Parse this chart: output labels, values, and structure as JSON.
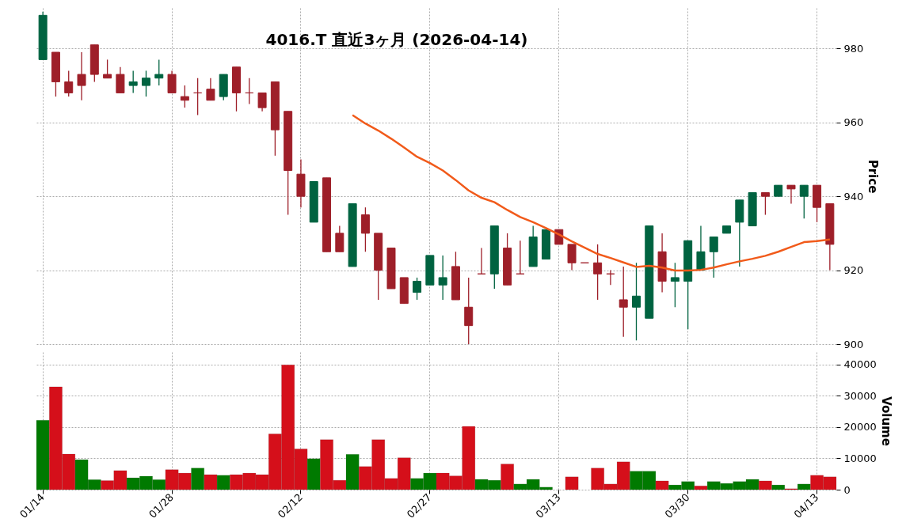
{
  "chart_data": [
    {
      "type": "candlestick",
      "title": "4016.T 直近3ヶ月 (2026-04-14)",
      "ylabel": "Price",
      "ohlc": [
        [
          977,
          990,
          977,
          989
        ],
        [
          979,
          979,
          967,
          971
        ],
        [
          971,
          974,
          967,
          968
        ],
        [
          973,
          979,
          966,
          970
        ],
        [
          981,
          981,
          971,
          973
        ],
        [
          973,
          977,
          972,
          972
        ],
        [
          973,
          975,
          968,
          968
        ],
        [
          970,
          974,
          968,
          971
        ],
        [
          970,
          974,
          967,
          972
        ],
        [
          972,
          977,
          970,
          973
        ],
        [
          973,
          974,
          968,
          968
        ],
        [
          967,
          970,
          964,
          966
        ],
        [
          968,
          972,
          962,
          968
        ],
        [
          969,
          972,
          966,
          966
        ],
        [
          967,
          973,
          966,
          973
        ],
        [
          975,
          975,
          963,
          968
        ],
        [
          968,
          972,
          965,
          968
        ],
        [
          968,
          968,
          963,
          964
        ],
        [
          971,
          971,
          951,
          958
        ],
        [
          963,
          963,
          935,
          947
        ],
        [
          946,
          950,
          937,
          940
        ],
        [
          933,
          944,
          933,
          944
        ],
        [
          945,
          945,
          925,
          925
        ],
        [
          930,
          932,
          925,
          925
        ],
        [
          921,
          938,
          921,
          938
        ],
        [
          935,
          937,
          925,
          930
        ],
        [
          930,
          930,
          912,
          920
        ],
        [
          926,
          926,
          915,
          915
        ],
        [
          918,
          918,
          911,
          911
        ],
        [
          914,
          918,
          912,
          917
        ],
        [
          916,
          924,
          916,
          924
        ],
        [
          916,
          924,
          912,
          918
        ],
        [
          921,
          925,
          912,
          912
        ],
        [
          910,
          918,
          900,
          905
        ],
        [
          919,
          926,
          919,
          919
        ],
        [
          919,
          932,
          915,
          932
        ],
        [
          926,
          930,
          916,
          916
        ],
        [
          919,
          928,
          919,
          919
        ],
        [
          921,
          932,
          921,
          929
        ],
        [
          923,
          931,
          923,
          931
        ],
        [
          931,
          931,
          927,
          927
        ],
        [
          927,
          927,
          920,
          922
        ],
        [
          922,
          922,
          922,
          922
        ],
        [
          922,
          927,
          912,
          919
        ],
        [
          919,
          920,
          916,
          919
        ],
        [
          912,
          921,
          902,
          910
        ],
        [
          910,
          922,
          901,
          913
        ],
        [
          907,
          932,
          907,
          932
        ],
        [
          925,
          930,
          914,
          917
        ],
        [
          917,
          922,
          910,
          918
        ],
        [
          917,
          928,
          904,
          928
        ],
        [
          920,
          932,
          920,
          925
        ],
        [
          925,
          929,
          918,
          929
        ],
        [
          930,
          932,
          930,
          932
        ],
        [
          933,
          939,
          921,
          939
        ],
        [
          932,
          941,
          932,
          941
        ],
        [
          941,
          941,
          935,
          940
        ],
        [
          940,
          943,
          940,
          943
        ],
        [
          943,
          943,
          938,
          942
        ],
        [
          940,
          943,
          934,
          943
        ],
        [
          943,
          943,
          933,
          937
        ],
        [
          938,
          938,
          920,
          927
        ]
      ],
      "colors": [
        "#006340",
        "#9e1f29",
        "#9e1f29",
        "#9e1f29",
        "#9e1f29",
        "#9e1f29",
        "#9e1f29",
        "#006340",
        "#006340",
        "#006340",
        "#9e1f29",
        "#9e1f29",
        "#9e1f29",
        "#9e1f29",
        "#006340",
        "#9e1f29",
        "#9e1f29",
        "#9e1f29",
        "#9e1f29",
        "#9e1f29",
        "#9e1f29",
        "#006340",
        "#9e1f29",
        "#9e1f29",
        "#006340",
        "#9e1f29",
        "#9e1f29",
        "#9e1f29",
        "#9e1f29",
        "#006340",
        "#006340",
        "#006340",
        "#9e1f29",
        "#9e1f29",
        "#9e1f29",
        "#006340",
        "#9e1f29",
        "#9e1f29",
        "#006340",
        "#006340",
        "#9e1f29",
        "#9e1f29",
        "#9e1f29",
        "#9e1f29",
        "#9e1f29",
        "#9e1f29",
        "#006340",
        "#006340",
        "#9e1f29",
        "#006340",
        "#006340",
        "#006340",
        "#006340",
        "#006340",
        "#006340",
        "#006340",
        "#9e1f29",
        "#006340",
        "#9e1f29",
        "#006340",
        "#9e1f29",
        "#9e1f29"
      ],
      "series": [
        {
          "type": "line",
          "color": "#f15a1a",
          "values": [
            null,
            null,
            null,
            null,
            null,
            null,
            null,
            null,
            null,
            null,
            null,
            null,
            null,
            null,
            null,
            null,
            null,
            null,
            null,
            null,
            null,
            null,
            null,
            null,
            962,
            959.7,
            957.8,
            955.6,
            953.2,
            950.7,
            949,
            947,
            944.4,
            941.6,
            939.6,
            938.4,
            936.3,
            934.4,
            933,
            931.4,
            929.7,
            927.8,
            926.1,
            924.4,
            923.3,
            922.1,
            920.9,
            921.2,
            920.7,
            919.9,
            919.9,
            920.1,
            920.7,
            921.6,
            922.4,
            923.1,
            923.9,
            925,
            926.3,
            927.6,
            927.9,
            928.3
          ]
        }
      ],
      "ylim": [
        900,
        991
      ],
      "yticks": [
        900,
        920,
        940,
        960,
        980
      ],
      "grid": true,
      "tick_labels": "y"
    },
    {
      "type": "bar",
      "ylabel": "Volume",
      "categories": [
        "01/14",
        null,
        null,
        null,
        null,
        null,
        null,
        null,
        null,
        null,
        "01/28",
        null,
        null,
        null,
        null,
        null,
        null,
        null,
        null,
        null,
        "02/12",
        null,
        null,
        null,
        null,
        null,
        null,
        null,
        null,
        null,
        "02/27",
        null,
        null,
        null,
        null,
        null,
        null,
        null,
        null,
        null,
        "03/13",
        null,
        null,
        null,
        null,
        null,
        null,
        null,
        null,
        null,
        "03/30",
        null,
        null,
        null,
        null,
        null,
        null,
        null,
        null,
        null,
        "04/13",
        null
      ],
      "values": [
        22200,
        32900,
        11400,
        9600,
        3200,
        2900,
        6100,
        3800,
        4300,
        3200,
        6400,
        5300,
        6900,
        4800,
        4600,
        4800,
        5300,
        4800,
        17800,
        39900,
        13000,
        9900,
        16000,
        3000,
        11300,
        7400,
        16000,
        3600,
        10200,
        3600,
        5300,
        5300,
        4400,
        20200,
        3300,
        3000,
        8200,
        1800,
        3300,
        800,
        null,
        4100,
        null,
        6900,
        1800,
        8900,
        5900,
        5900,
        2800,
        1500,
        2600,
        1200,
        2600,
        2000,
        2600,
        3300,
        2800,
        1500,
        300,
        1800,
        4600,
        4100
      ],
      "colors": [
        "#007a00",
        "#d50f1a",
        "#d50f1a",
        "#007a00",
        "#007a00",
        "#d50f1a",
        "#d50f1a",
        "#007a00",
        "#007a00",
        "#007a00",
        "#d50f1a",
        "#d50f1a",
        "#007a00",
        "#d50f1a",
        "#007a00",
        "#d50f1a",
        "#d50f1a",
        "#d50f1a",
        "#d50f1a",
        "#d50f1a",
        "#d50f1a",
        "#007a00",
        "#d50f1a",
        "#d50f1a",
        "#007a00",
        "#d50f1a",
        "#d50f1a",
        "#d50f1a",
        "#d50f1a",
        "#007a00",
        "#007a00",
        "#d50f1a",
        "#d50f1a",
        "#d50f1a",
        "#007a00",
        "#007a00",
        "#d50f1a",
        "#007a00",
        "#007a00",
        "#007a00",
        "#d50f1a",
        "#d50f1a",
        "#d50f1a",
        "#d50f1a",
        "#d50f1a",
        "#d50f1a",
        "#007a00",
        "#007a00",
        "#d50f1a",
        "#007a00",
        "#007a00",
        "#d50f1a",
        "#007a00",
        "#007a00",
        "#007a00",
        "#007a00",
        "#d50f1a",
        "#007a00",
        "#d50f1a",
        "#007a00",
        "#d50f1a",
        "#d50f1a"
      ],
      "ylim": [
        0,
        44000
      ],
      "yticks": [
        0,
        10000,
        20000,
        30000,
        40000
      ],
      "grid": true
    }
  ]
}
